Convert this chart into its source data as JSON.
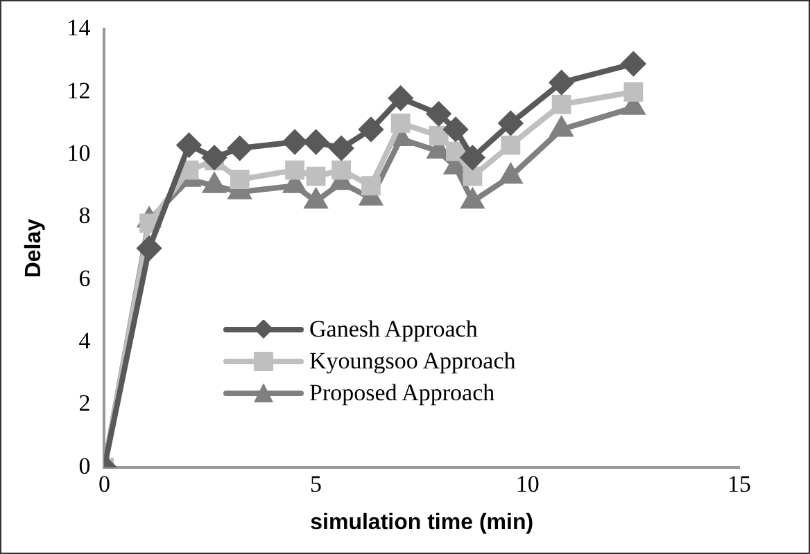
{
  "chart_data": {
    "type": "line",
    "xlabel": "simulation time (min)",
    "ylabel": "Delay",
    "x": [
      0,
      1.06,
      2.0,
      2.6,
      3.2,
      4.5,
      5.0,
      5.6,
      6.3,
      7.0,
      7.9,
      8.3,
      8.7,
      9.6,
      10.8,
      12.5
    ],
    "series": [
      {
        "name": "Ganesh Approach",
        "color": "#595959",
        "marker": "diamond",
        "values": [
          0,
          7,
          10.3,
          9.9,
          10.2,
          10.4,
          10.4,
          10.2,
          10.8,
          11.8,
          11.3,
          10.8,
          9.9,
          11,
          12.3,
          12.9
        ]
      },
      {
        "name": "Kyoungsoo Approach",
        "color": "#bfbfbf",
        "marker": "square",
        "values": [
          0,
          7.8,
          9.5,
          9.8,
          9.2,
          9.5,
          9.3,
          9.5,
          9.0,
          11.0,
          10.6,
          10.1,
          9.3,
          10.3,
          11.6,
          12.0
        ]
      },
      {
        "name": "Proposed Approach",
        "color": "#808080",
        "marker": "triangle",
        "values": [
          0,
          7.9,
          9.2,
          9.0,
          8.8,
          9.0,
          8.5,
          9.1,
          8.6,
          10.5,
          10.1,
          9.6,
          8.5,
          9.3,
          10.8,
          11.5
        ]
      }
    ],
    "xlim": [
      0,
      15
    ],
    "xticks": [
      0,
      5,
      10,
      15
    ],
    "ylim": [
      0,
      14
    ],
    "yticks": [
      0,
      2,
      4,
      6,
      8,
      10,
      12,
      14
    ],
    "grid": false,
    "legend": "bottom left",
    "line_style": "solid"
  }
}
